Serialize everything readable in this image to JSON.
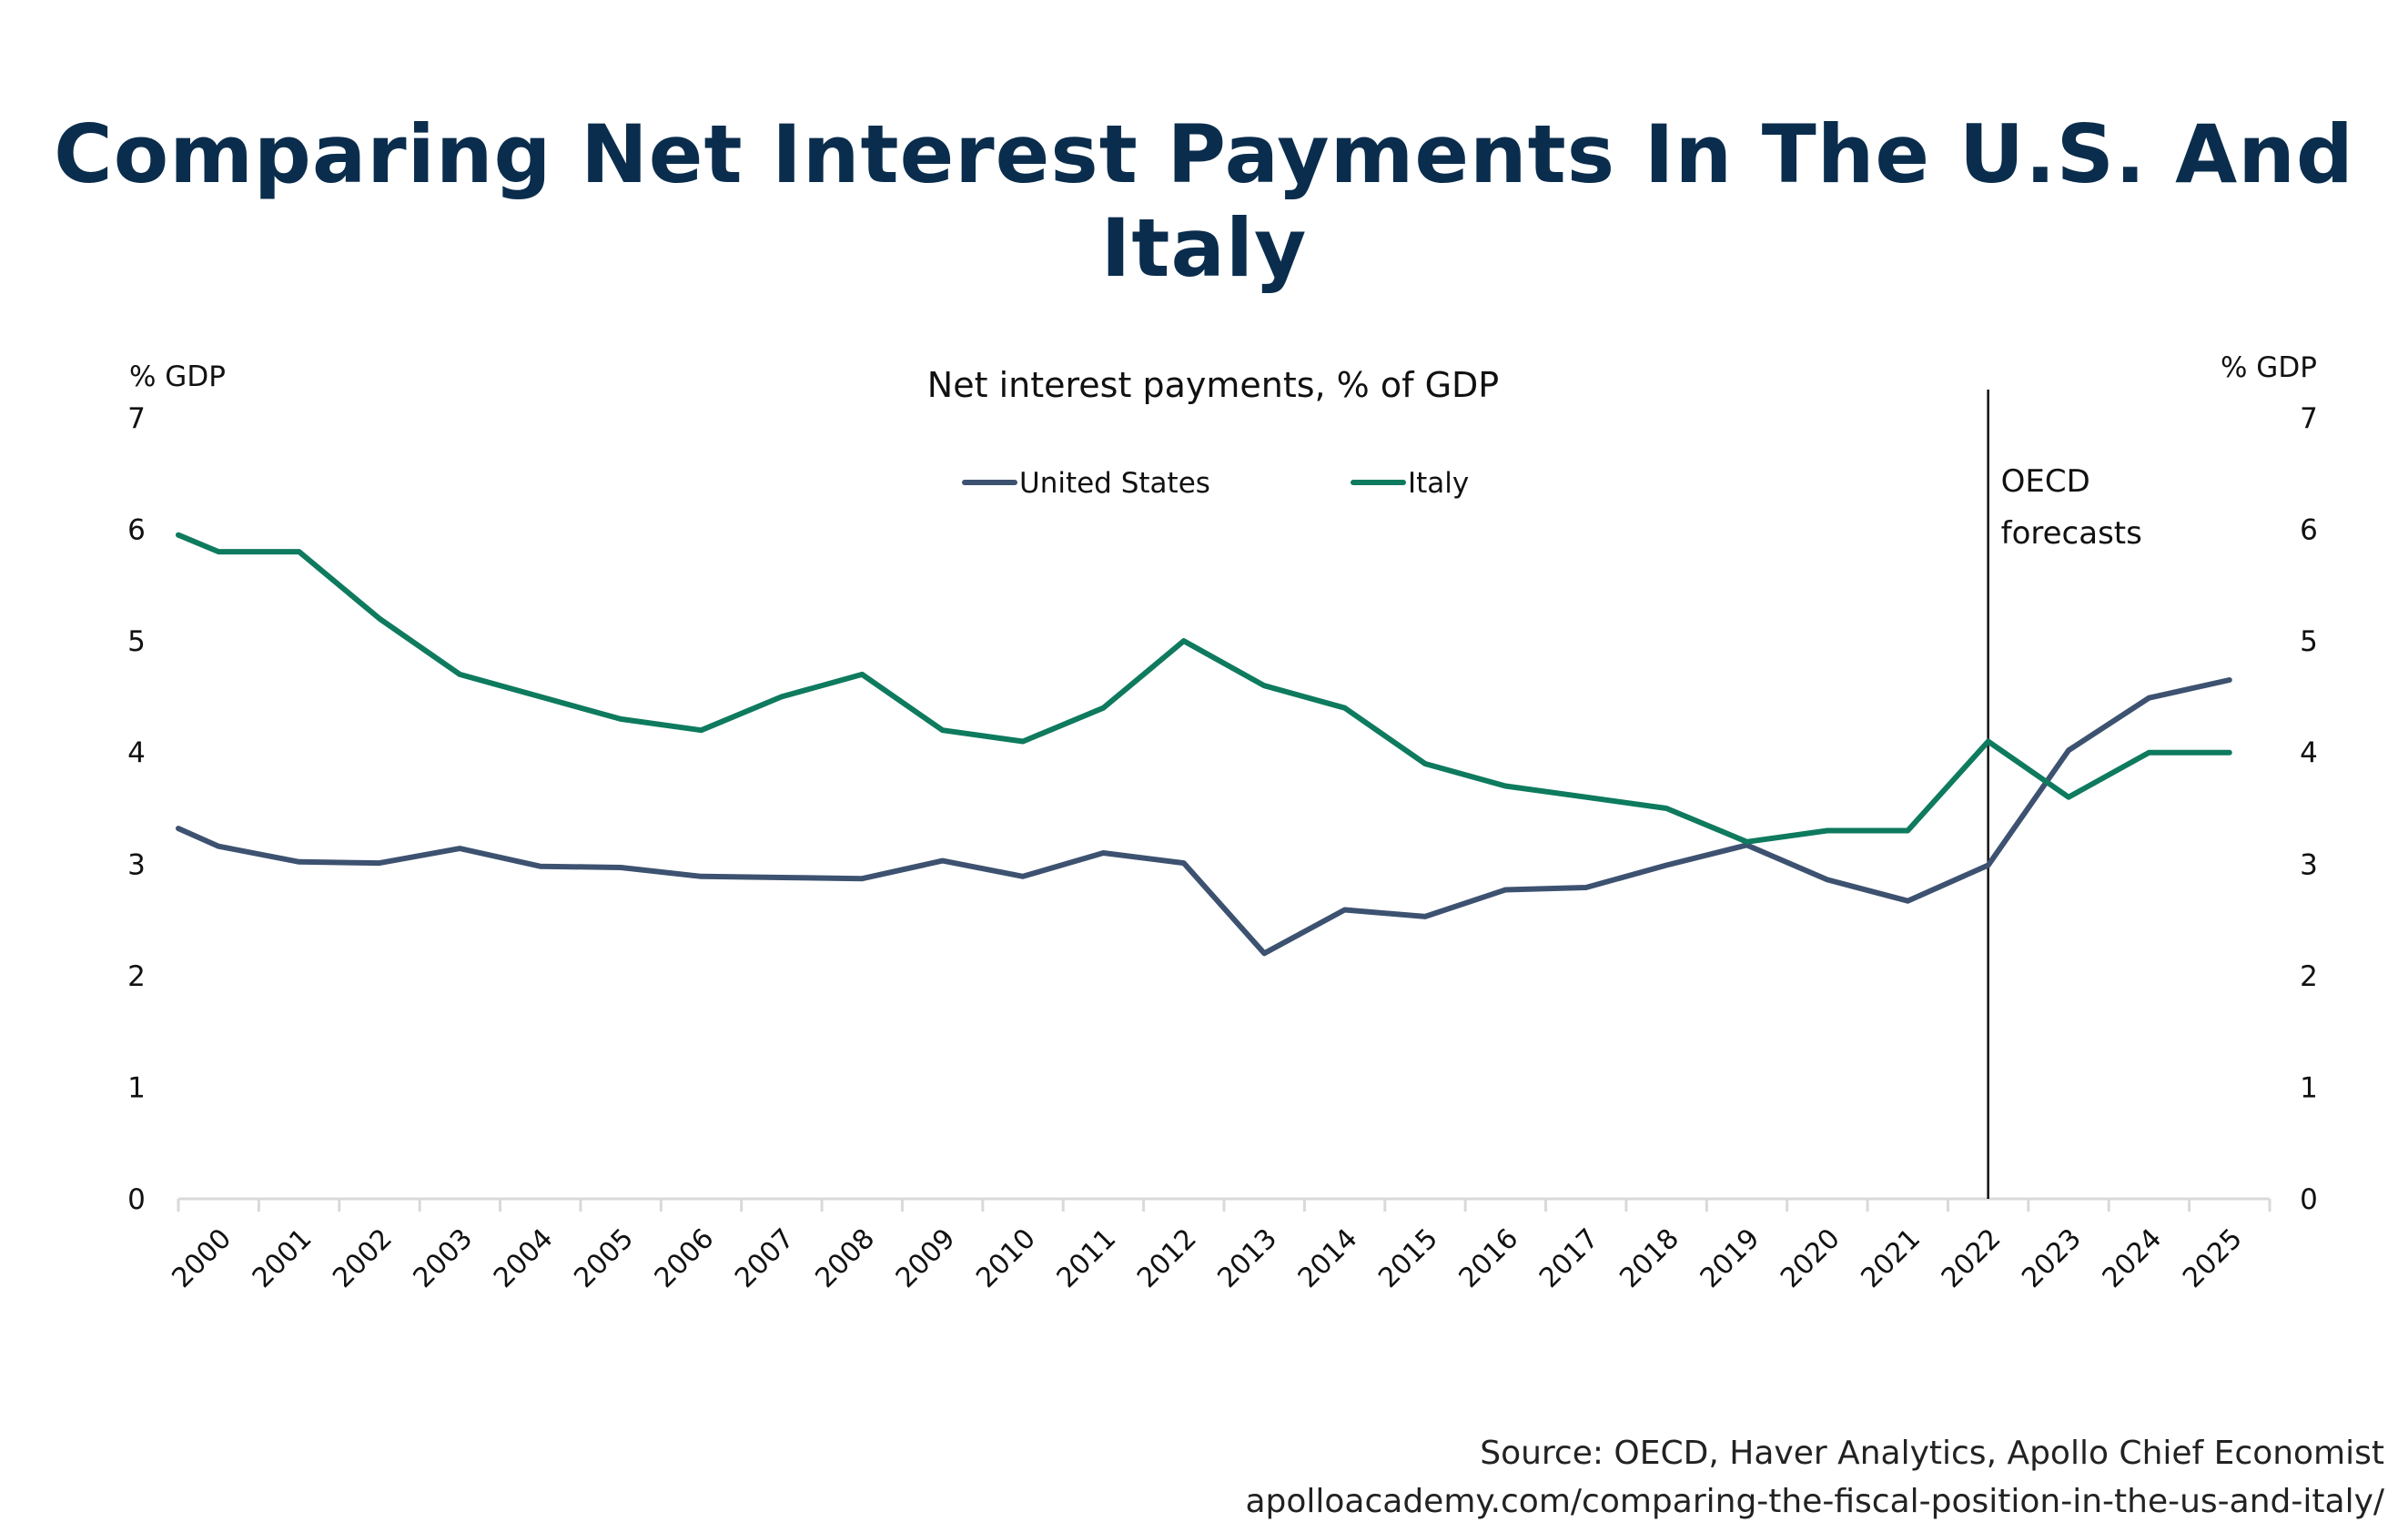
{
  "page": {
    "title": "Comparing Net Interest Payments In The U.S. And Italy",
    "source_line1": "Source: OECD, Haver Analytics, Apollo Chief Economist",
    "source_line2": "apolloacademy.com/comparing-the-fiscal-position-in-the-us-and-italy/"
  },
  "colors": {
    "title": "#0b2d4d",
    "us": "#3d5270",
    "italy": "#0e7a5e",
    "axis": "#d9d9d9",
    "text": "#111111"
  },
  "chart_data": {
    "type": "line",
    "title": "Net interest payments, % of GDP",
    "left_axis_label": "% GDP",
    "right_axis_label": "% GDP",
    "ylim": [
      0,
      7
    ],
    "yticks": [
      0,
      1,
      2,
      3,
      4,
      5,
      6,
      7
    ],
    "categories": [
      "2000",
      "2001",
      "2002",
      "2003",
      "2004",
      "2005",
      "2006",
      "2007",
      "2008",
      "2009",
      "2010",
      "2011",
      "2012",
      "2013",
      "2014",
      "2015",
      "2016",
      "2017",
      "2018",
      "2019",
      "2020",
      "2021",
      "2022",
      "2023",
      "2024",
      "2025"
    ],
    "x": [
      2000.0,
      2000.5,
      2001.5,
      2002.5,
      2003.5,
      2004.5,
      2005.5,
      2006.5,
      2007.5,
      2008.5,
      2009.5,
      2010.5,
      2011.5,
      2012.5,
      2013.5,
      2014.5,
      2015.5,
      2016.5,
      2017.5,
      2018.5,
      2019.5,
      2020.5,
      2021.5,
      2022.5,
      2023.5,
      2024.5,
      2025.5
    ],
    "series": [
      {
        "name": "United States",
        "values": [
          3.32,
          3.16,
          3.02,
          3.01,
          3.14,
          2.98,
          2.97,
          2.89,
          2.88,
          2.87,
          3.03,
          2.89,
          3.1,
          3.01,
          2.2,
          2.59,
          2.53,
          2.77,
          2.79,
          2.99,
          3.17,
          2.86,
          2.67,
          2.99,
          4.02,
          4.49,
          4.65
        ]
      },
      {
        "name": "Italy",
        "values": [
          5.95,
          5.8,
          5.8,
          5.2,
          4.7,
          4.5,
          4.3,
          4.2,
          4.5,
          4.7,
          4.2,
          4.1,
          4.4,
          5.0,
          4.6,
          4.4,
          3.9,
          3.7,
          3.6,
          3.5,
          3.2,
          3.3,
          3.3,
          4.1,
          3.6,
          4.0,
          4.0
        ]
      }
    ],
    "forecast_label_line1": "OECD",
    "forecast_label_line2": "forecasts",
    "forecast_start": 2022.5,
    "legend_position": "top-center",
    "grid": false
  }
}
